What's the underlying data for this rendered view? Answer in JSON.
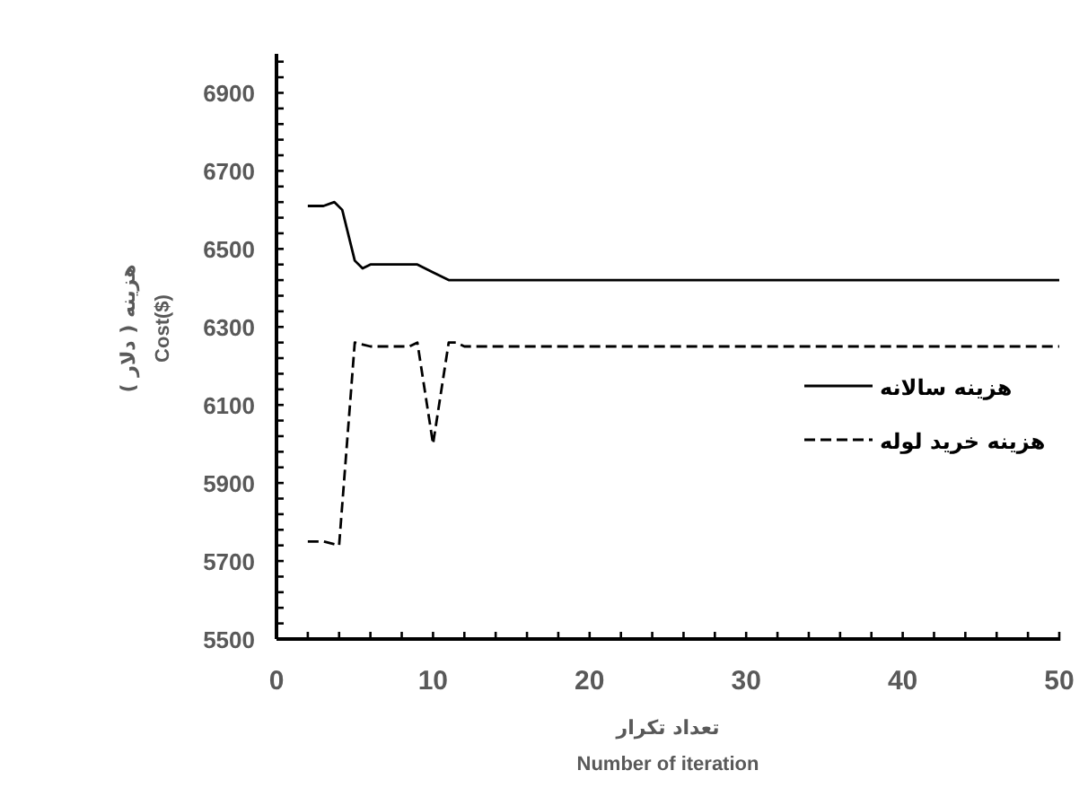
{
  "chart_data": {
    "type": "line",
    "xlabel": "Number  of iteration",
    "ylabel": "Cost($)",
    "annotations": [
      "تعداد تکرار",
      "هزینه ( دلار )"
    ],
    "series": [
      {
        "name": "هزینه سالانه",
        "color": "#000000",
        "line_style": "solid",
        "x": [
          2,
          3,
          3.7,
          4.2,
          5,
          5.5,
          6,
          9,
          10,
          11,
          12,
          50
        ],
        "values": [
          6610,
          6610,
          6620,
          6600,
          6470,
          6450,
          6460,
          6460,
          6440,
          6420,
          6420,
          6420
        ]
      },
      {
        "name": "هزینه خرید لوله",
        "color": "#000000",
        "line_style": "dashed",
        "x": [
          2,
          3,
          4,
          5,
          6,
          8.5,
          9,
          10,
          11,
          11.5,
          12,
          50
        ],
        "values": [
          5750,
          5750,
          5740,
          6260,
          6250,
          6250,
          6260,
          6000,
          6260,
          6260,
          6250,
          6250
        ]
      }
    ],
    "xlim": [
      0,
      50
    ],
    "xticks": [
      0,
      10,
      20,
      30,
      40,
      50
    ],
    "ylim": [
      5500,
      7000
    ],
    "yticks": [
      5500,
      5700,
      5900,
      6100,
      6300,
      6500,
      6700,
      6900
    ],
    "grid": false,
    "legend": "right",
    "marker": "none"
  }
}
